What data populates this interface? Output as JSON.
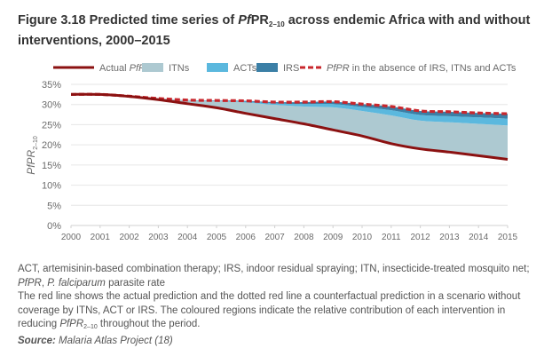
{
  "figure": {
    "title_prefix": "Figure 3.18 Predicted time series of ",
    "title_pf": "Pf",
    "title_pr": "PR",
    "title_sub": "2–10",
    "title_suffix": " across endemic Africa with and without interventions, 2000–2015"
  },
  "caption": {
    "line1_a": "ACT, artemisinin-based combination therapy; IRS, indoor residual spraying; ITN, insecticide-treated mosquito net; ",
    "line1_pf": "PfPR",
    "line1_b": ", ",
    "line1_species": "P. falciparum",
    "line1_c": " parasite rate",
    "line2_a": "The red line shows the actual prediction and the dotted red line a counterfactual prediction in a scenario without coverage by ITNs, ACT or IRS. The coloured regions indicate the relative contribution of each intervention in reducing ",
    "line2_pf": "PfPR",
    "line2_sub": "2–10",
    "line2_b": " throughout the period.",
    "source_label": "Source:",
    "source_text": " Malaria Atlas Project (18)"
  },
  "chart_data": {
    "type": "area",
    "title": "Predicted time series of PfPR2–10 across endemic Africa with and without interventions, 2000–2015",
    "xlabel": "",
    "ylabel": "PfPR2–10",
    "ylim": [
      0,
      35
    ],
    "xlim": [
      2000,
      2015
    ],
    "grid": true,
    "legend_position": "top",
    "x": [
      2000,
      2001,
      2002,
      2003,
      2004,
      2005,
      2006,
      2007,
      2008,
      2009,
      2010,
      2011,
      2012,
      2013,
      2014,
      2015
    ],
    "x_tick_labels": [
      "2000",
      "2001",
      "2002",
      "2003",
      "2004",
      "2005",
      "2006",
      "2007",
      "2008",
      "2009",
      "2010",
      "2011",
      "2012",
      "2013",
      "2014",
      "2015"
    ],
    "y_ticks": [
      0,
      5,
      10,
      15,
      20,
      25,
      30,
      35
    ],
    "y_tick_labels": [
      "0%",
      "5%",
      "10%",
      "15%",
      "20%",
      "25%",
      "30%",
      "35%"
    ],
    "series": [
      {
        "name": "Actual PfPR",
        "kind": "line",
        "color": "#8b1111",
        "values": [
          32.5,
          32.5,
          32.0,
          31.2,
          30.2,
          29.2,
          27.8,
          26.5,
          25.2,
          23.7,
          22.2,
          20.3,
          19.0,
          18.2,
          17.3,
          16.4
        ]
      },
      {
        "name": "ITNs",
        "kind": "area-band",
        "color": "#adc9d1",
        "values": [
          0.0,
          0.0,
          0.05,
          0.3,
          0.8,
          1.6,
          2.7,
          3.4,
          4.3,
          5.6,
          6.2,
          7.0,
          7.0,
          7.4,
          7.9,
          8.4
        ]
      },
      {
        "name": "ACTs",
        "kind": "area-band",
        "color": "#5bb8de",
        "values": [
          0.0,
          0.0,
          0.0,
          0.0,
          0.05,
          0.1,
          0.2,
          0.4,
          0.6,
          0.8,
          1.0,
          1.3,
          1.4,
          1.5,
          1.6,
          1.7
        ]
      },
      {
        "name": "IRS",
        "kind": "area-band",
        "color": "#3b7fa6",
        "values": [
          0.0,
          0.0,
          0.0,
          0.0,
          0.05,
          0.1,
          0.2,
          0.3,
          0.5,
          0.6,
          0.7,
          0.9,
          1.0,
          1.1,
          1.1,
          1.2
        ]
      },
      {
        "name": "PfPR in the absence of IRS, ITNs and ACTs",
        "kind": "dashed-line",
        "color": "#c8272d",
        "values": [
          32.5,
          32.5,
          32.05,
          31.5,
          31.1,
          31.0,
          30.9,
          30.6,
          30.6,
          30.7,
          30.1,
          29.5,
          28.4,
          28.2,
          27.9,
          27.7
        ]
      }
    ],
    "legend": [
      {
        "label_pre": "Actual ",
        "label_it": "PfPR",
        "label_post": "",
        "swatch": "line",
        "color": "#8b1111"
      },
      {
        "label_pre": "ITNs",
        "label_it": "",
        "label_post": "",
        "swatch": "box",
        "color": "#adc9d1"
      },
      {
        "label_pre": "ACTs",
        "label_it": "",
        "label_post": "",
        "swatch": "box",
        "color": "#5bb8de"
      },
      {
        "label_pre": "IRS",
        "label_it": "",
        "label_post": "",
        "swatch": "box",
        "color": "#3b7fa6"
      },
      {
        "label_pre": "",
        "label_it": "PfPR",
        "label_post": " in the absence of IRS, ITNs and ACTs",
        "swatch": "dash",
        "color": "#c8272d"
      }
    ]
  }
}
